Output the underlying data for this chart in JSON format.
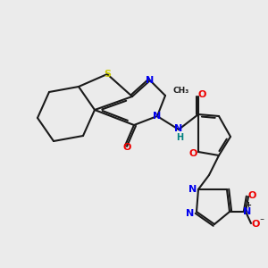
{
  "bg": "#ebebeb",
  "bc": "#1a1a1a",
  "Sc": "#cccc00",
  "Nc": "#0000ee",
  "Oc": "#ee0000",
  "Hc": "#008080",
  "lw": 1.5,
  "dlw": 1.5
}
